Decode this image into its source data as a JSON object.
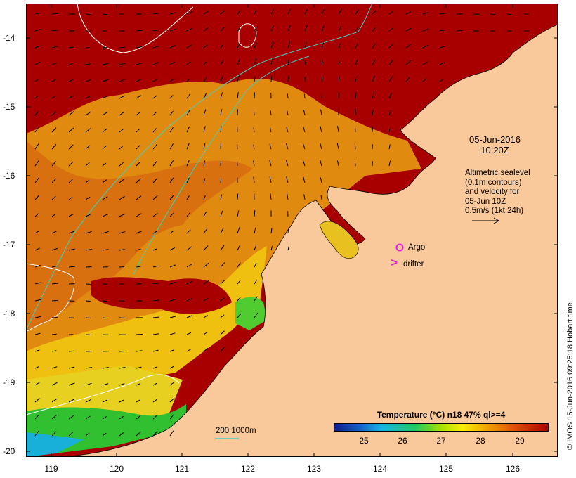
{
  "map": {
    "lat_ticks": [
      "-14",
      "-15",
      "-16",
      "-17",
      "-18",
      "-19",
      "-20"
    ],
    "lon_ticks": [
      "119",
      "120",
      "121",
      "122",
      "123",
      "124",
      "125",
      "126"
    ],
    "date_line1": "05-Jun-2016",
    "date_line2": "10:20Z",
    "desc_lines": [
      "Altimetric sealevel",
      "(0.1m contours)",
      "and velocity for",
      "05-Jun 10Z",
      "0.5m/s (1kt 24h)"
    ],
    "argo_label": "Argo",
    "drifter_label": "drifter",
    "drifter_marker": ">",
    "scale_label": "200  1000m",
    "credit": "© IMOS 15-Jun-2016 09:25:18 Hobart time",
    "colors": {
      "land": "#f9c89b",
      "warm_water": "#b00000",
      "orange_water": "#e88a00",
      "yellow_water": "#f0c800",
      "green_water": "#30c830",
      "cyan_water": "#18b4d8",
      "argo": "#e020e0",
      "contour_1000m": "#40d0c0"
    }
  },
  "colorbar": {
    "title": "Temperature (°C) n18 47% ql>=4",
    "ticks": [
      "25",
      "26",
      "27",
      "28",
      "29"
    ]
  }
}
